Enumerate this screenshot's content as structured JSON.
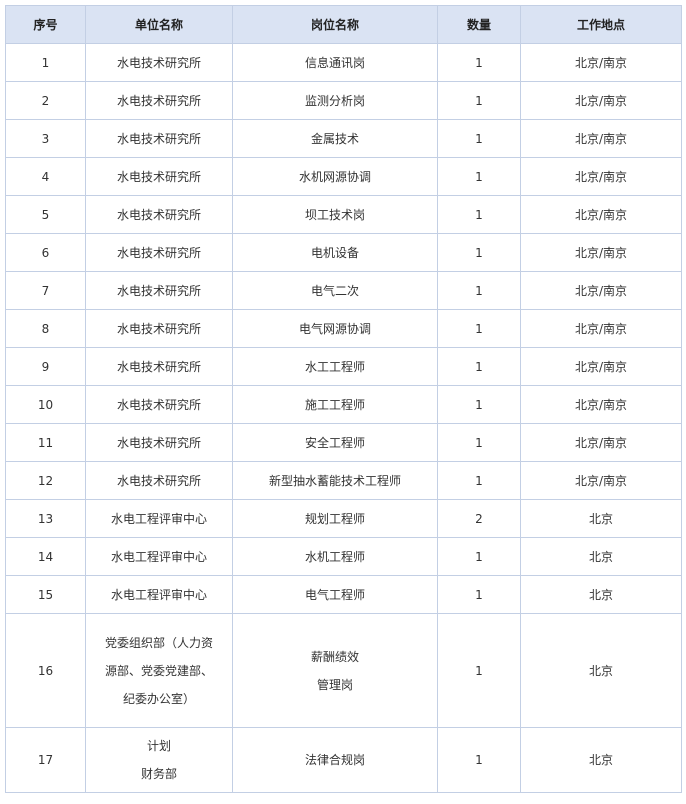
{
  "table": {
    "headers": [
      "序号",
      "单位名称",
      "岗位名称",
      "数量",
      "工作地点"
    ],
    "rows": [
      [
        "1",
        "水电技术研究所",
        "信息通讯岗",
        "1",
        "北京/南京"
      ],
      [
        "2",
        "水电技术研究所",
        "监测分析岗",
        "1",
        "北京/南京"
      ],
      [
        "3",
        "水电技术研究所",
        "金属技术",
        "1",
        "北京/南京"
      ],
      [
        "4",
        "水电技术研究所",
        "水机网源协调",
        "1",
        "北京/南京"
      ],
      [
        "5",
        "水电技术研究所",
        "坝工技术岗",
        "1",
        "北京/南京"
      ],
      [
        "6",
        "水电技术研究所",
        "电机设备",
        "1",
        "北京/南京"
      ],
      [
        "7",
        "水电技术研究所",
        "电气二次",
        "1",
        "北京/南京"
      ],
      [
        "8",
        "水电技术研究所",
        "电气网源协调",
        "1",
        "北京/南京"
      ],
      [
        "9",
        "水电技术研究所",
        "水工工程师",
        "1",
        "北京/南京"
      ],
      [
        "10",
        "水电技术研究所",
        "施工工程师",
        "1",
        "北京/南京"
      ],
      [
        "11",
        "水电技术研究所",
        "安全工程师",
        "1",
        "北京/南京"
      ],
      [
        "12",
        "水电技术研究所",
        "新型抽水蓄能技术工程师",
        "1",
        "北京/南京"
      ],
      [
        "13",
        "水电工程评审中心",
        "规划工程师",
        "2",
        "北京"
      ],
      [
        "14",
        "水电工程评审中心",
        "水机工程师",
        "1",
        "北京"
      ],
      [
        "15",
        "水电工程评审中心",
        "电气工程师",
        "1",
        "北京"
      ],
      [
        "16",
        "党委组织部（人力资\n源部、党委党建部、\n纪委办公室）",
        "薪酬绩效\n管理岗",
        "1",
        "北京"
      ],
      [
        "17",
        "计划\n财务部",
        "法律合规岗",
        "1",
        "北京"
      ]
    ]
  },
  "colors": {
    "header_bg": "#dae3f3",
    "border": "#c3cfe4"
  }
}
